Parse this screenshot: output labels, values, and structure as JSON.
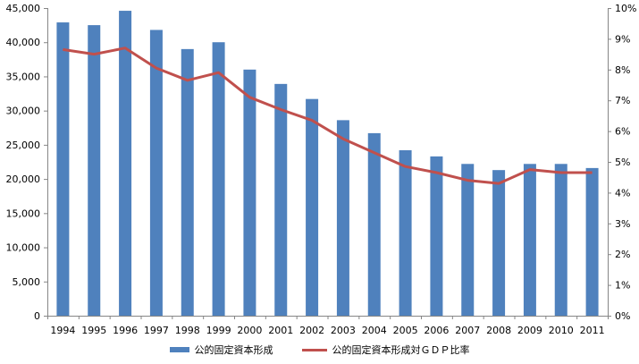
{
  "chart_data": {
    "type": "bar",
    "categories": [
      "1994",
      "1995",
      "1996",
      "1997",
      "1998",
      "1999",
      "2000",
      "2001",
      "2002",
      "2003",
      "2004",
      "2005",
      "2006",
      "2007",
      "2008",
      "2009",
      "2010",
      "2011"
    ],
    "series": [
      {
        "name": "公的固定資本形成",
        "type": "bar",
        "axis": "left",
        "color": "#4F81BD",
        "values": [
          42900,
          42500,
          44600,
          41800,
          39000,
          40000,
          36000,
          33900,
          31700,
          28600,
          26700,
          24200,
          23300,
          22200,
          21300,
          22200,
          22200,
          21600
        ]
      },
      {
        "name": "公的固定資本形成対ＧＤＰ比率",
        "type": "line",
        "axis": "right",
        "color": "#C0504D",
        "values": [
          8.65,
          8.5,
          8.7,
          8.05,
          7.65,
          7.9,
          7.1,
          6.7,
          6.35,
          5.75,
          5.3,
          4.85,
          4.65,
          4.4,
          4.3,
          4.75,
          4.65,
          4.65
        ]
      }
    ],
    "y_left": {
      "min": 0,
      "max": 45000,
      "step": 5000,
      "tick_labels": [
        "0",
        "5,000",
        "10,000",
        "15,000",
        "20,000",
        "25,000",
        "30,000",
        "35,000",
        "40,000",
        "45,000"
      ]
    },
    "y_right": {
      "min": 0,
      "max": 10,
      "step": 1,
      "tick_labels": [
        "0%",
        "1%",
        "2%",
        "3%",
        "4%",
        "5%",
        "6%",
        "7%",
        "8%",
        "9%",
        "10%"
      ]
    },
    "grid": false,
    "legend_position": "bottom"
  }
}
